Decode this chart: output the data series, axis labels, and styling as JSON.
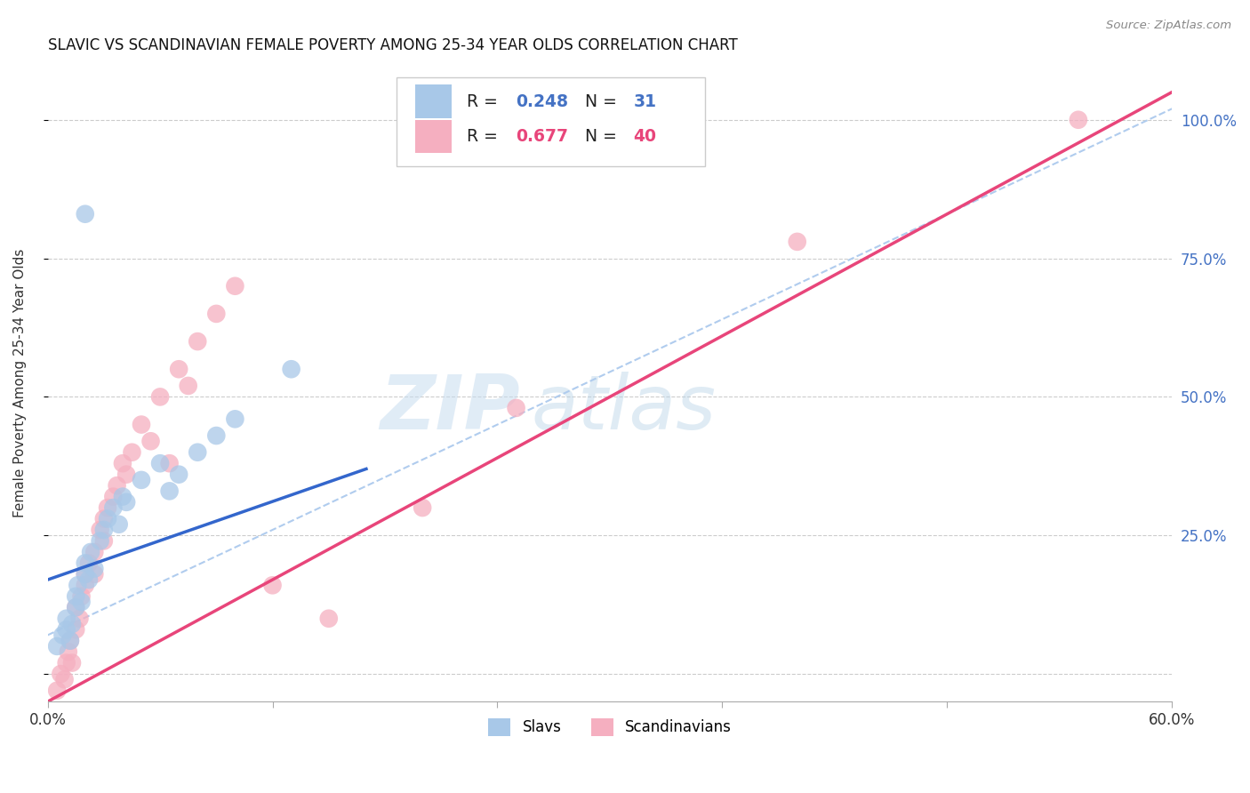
{
  "title": "SLAVIC VS SCANDINAVIAN FEMALE POVERTY AMONG 25-34 YEAR OLDS CORRELATION CHART",
  "source": "Source: ZipAtlas.com",
  "ylabel": "Female Poverty Among 25-34 Year Olds",
  "xlim": [
    0.0,
    0.6
  ],
  "ylim": [
    -0.05,
    1.1
  ],
  "ytick_positions": [
    0.0,
    0.25,
    0.5,
    0.75,
    1.0
  ],
  "ytick_labels": [
    "",
    "25.0%",
    "50.0%",
    "75.0%",
    "100.0%"
  ],
  "grid_color": "#cccccc",
  "background_color": "#ffffff",
  "slavs_color": "#a8c8e8",
  "scandinavians_color": "#f5afc0",
  "slavs_line_color": "#3366cc",
  "scandinavians_line_color": "#e8457a",
  "dashed_line_color": "#b0ccee",
  "r_slavs": 0.248,
  "n_slavs": 31,
  "r_scandinavians": 0.677,
  "n_scandinavians": 40,
  "legend_slavs": "Slavs",
  "legend_scandinavians": "Scandinavians",
  "watermark_zip": "ZIP",
  "watermark_atlas": "atlas",
  "slavs_x": [
    0.005,
    0.008,
    0.01,
    0.01,
    0.012,
    0.013,
    0.015,
    0.015,
    0.016,
    0.018,
    0.02,
    0.02,
    0.022,
    0.023,
    0.025,
    0.028,
    0.03,
    0.032,
    0.035,
    0.038,
    0.04,
    0.042,
    0.05,
    0.06,
    0.065,
    0.07,
    0.08,
    0.09,
    0.1,
    0.13,
    0.02
  ],
  "slavs_y": [
    0.05,
    0.07,
    0.08,
    0.1,
    0.06,
    0.09,
    0.12,
    0.14,
    0.16,
    0.13,
    0.18,
    0.2,
    0.17,
    0.22,
    0.19,
    0.24,
    0.26,
    0.28,
    0.3,
    0.27,
    0.32,
    0.31,
    0.35,
    0.38,
    0.33,
    0.36,
    0.4,
    0.43,
    0.46,
    0.55,
    0.83
  ],
  "scandinavians_x": [
    0.005,
    0.007,
    0.009,
    0.01,
    0.011,
    0.012,
    0.013,
    0.015,
    0.015,
    0.017,
    0.018,
    0.02,
    0.02,
    0.022,
    0.025,
    0.025,
    0.028,
    0.03,
    0.03,
    0.032,
    0.035,
    0.037,
    0.04,
    0.042,
    0.045,
    0.05,
    0.055,
    0.06,
    0.065,
    0.07,
    0.075,
    0.08,
    0.09,
    0.1,
    0.12,
    0.15,
    0.2,
    0.25,
    0.4,
    0.55
  ],
  "scandinavians_y": [
    -0.03,
    0.0,
    -0.01,
    0.02,
    0.04,
    0.06,
    0.02,
    0.08,
    0.12,
    0.1,
    0.14,
    0.16,
    0.18,
    0.2,
    0.18,
    0.22,
    0.26,
    0.24,
    0.28,
    0.3,
    0.32,
    0.34,
    0.38,
    0.36,
    0.4,
    0.45,
    0.42,
    0.5,
    0.38,
    0.55,
    0.52,
    0.6,
    0.65,
    0.7,
    0.16,
    0.1,
    0.3,
    0.48,
    0.78,
    1.0
  ],
  "slavs_line_x": [
    0.0,
    0.17
  ],
  "slavs_line_y": [
    0.17,
    0.37
  ],
  "scandinavians_line_x": [
    0.0,
    0.6
  ],
  "scandinavians_line_y": [
    -0.05,
    1.05
  ],
  "dashed_line_x": [
    0.0,
    0.6
  ],
  "dashed_line_y": [
    0.07,
    1.02
  ]
}
